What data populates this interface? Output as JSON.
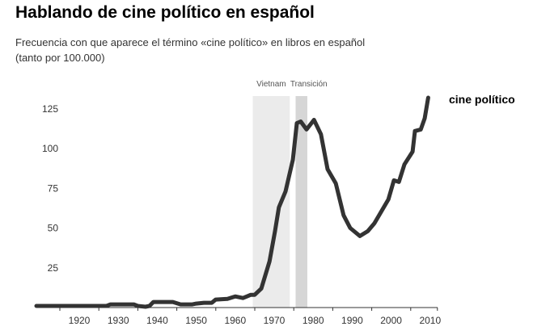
{
  "chart_data": {
    "type": "line",
    "title": "Hablando de cine político en español",
    "subtitle": "Frecuencia con que aparece el término «cine político» en libros en español",
    "subtitle2": "(tanto por 100.000)",
    "xlabel": "",
    "ylabel": "",
    "xlim": [
      1909,
      2011
    ],
    "ylim": [
      0,
      135
    ],
    "xticks": [
      1920,
      1930,
      1940,
      1950,
      1960,
      1970,
      1980,
      1990,
      2000,
      2010
    ],
    "yticks": [
      25,
      50,
      75,
      100,
      125
    ],
    "grid": false,
    "bands": [
      {
        "label": "Vietnam",
        "start": 1964.5,
        "end": 1974,
        "color": "#ebebeb"
      },
      {
        "label": "Transición",
        "start": 1975.5,
        "end": 1978.5,
        "color": "#d6d6d6"
      }
    ],
    "series": [
      {
        "name": "cine político",
        "color": "#333333",
        "x": [
          1909,
          1915,
          1920,
          1927,
          1928,
          1934,
          1935,
          1937,
          1938,
          1939,
          1944,
          1946,
          1949,
          1950,
          1952,
          1954,
          1955,
          1958,
          1960,
          1962,
          1963,
          1964,
          1965,
          1966.7,
          1968.8,
          1970.2,
          1971.2,
          1972.9,
          1974.8,
          1975.8,
          1976.8,
          1978.3,
          1980.2,
          1982,
          1983.7,
          1985.8,
          1987.8,
          1989.5,
          1992,
          1994,
          1995.7,
          1999.3,
          2000.7,
          2002,
          2003.4,
          2005.5,
          2006.1,
          2007.6,
          2008.6,
          2009.5
        ],
        "y": [
          1,
          1,
          1,
          1,
          2,
          2,
          1,
          0.5,
          1,
          3.5,
          3.5,
          2,
          2,
          2.5,
          3,
          3,
          5,
          5.5,
          7,
          6,
          7,
          8,
          8,
          12,
          29,
          48,
          63,
          73,
          93,
          116,
          117,
          112,
          118,
          109,
          87,
          78,
          58,
          50,
          45,
          48,
          53,
          68,
          80,
          79,
          90,
          98,
          111,
          112,
          119,
          132
        ]
      }
    ]
  }
}
